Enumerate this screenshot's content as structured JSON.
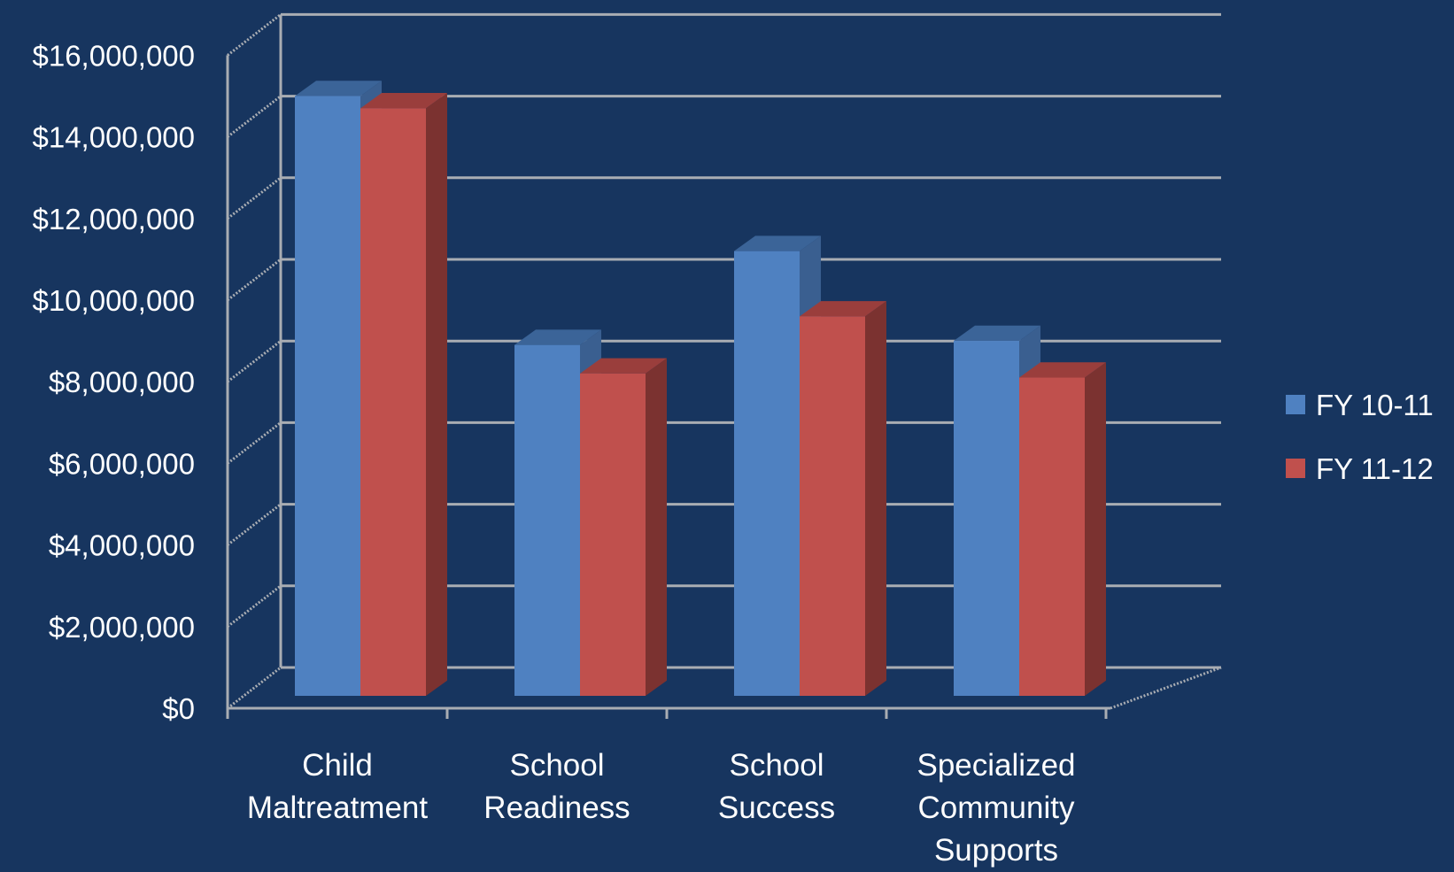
{
  "chart_data": {
    "type": "bar",
    "title": "",
    "xlabel": "",
    "ylabel": "",
    "ylim": [
      0,
      16000000
    ],
    "ytick_step": 2000000,
    "yticks": [
      "$0",
      "$2,000,000",
      "$4,000,000",
      "$6,000,000",
      "$8,000,000",
      "$10,000,000",
      "$12,000,000",
      "$14,000,000",
      "$16,000,000"
    ],
    "categories": [
      [
        "Child",
        "Maltreatment"
      ],
      [
        "School",
        "Readiness"
      ],
      [
        "School",
        "Success"
      ],
      [
        "Specialized",
        "Community",
        "Supports"
      ]
    ],
    "series": [
      {
        "name": "FY 10-11",
        "values": [
          14700000,
          8600000,
          10900000,
          8700000
        ]
      },
      {
        "name": "FY 11-12",
        "values": [
          14400000,
          7900000,
          9300000,
          7800000
        ]
      }
    ],
    "grid": true,
    "three_d": true,
    "legend_position": "right"
  },
  "colors": {
    "background": "#17355f",
    "series": [
      {
        "front": "#4f81c1",
        "side": "#3a5f90",
        "top": "#3b6498"
      },
      {
        "front": "#c0504d",
        "side": "#7b3230",
        "top": "#9a3e3c"
      }
    ],
    "gridline": "#a9adb3",
    "text": "#ffffff"
  }
}
